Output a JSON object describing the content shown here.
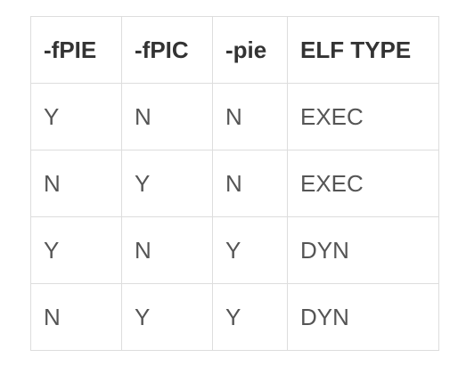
{
  "table": {
    "headers": [
      "-fPIE",
      "-fPIC",
      "-pie",
      "ELF TYPE"
    ],
    "rows": [
      [
        "Y",
        "N",
        "N",
        "EXEC"
      ],
      [
        "N",
        "Y",
        "N",
        "EXEC"
      ],
      [
        "Y",
        "N",
        "Y",
        "DYN"
      ],
      [
        "N",
        "Y",
        "Y",
        "DYN"
      ]
    ]
  }
}
